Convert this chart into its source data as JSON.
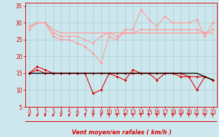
{
  "xlabel": "Vent moyen/en rafales ( km/h )",
  "background_color": "#cce8ee",
  "grid_color": "#aacccc",
  "xlim": [
    -0.5,
    23.5
  ],
  "ylim": [
    5,
    36
  ],
  "yticks": [
    5,
    10,
    15,
    20,
    25,
    30,
    35
  ],
  "xticks": [
    0,
    1,
    2,
    3,
    4,
    5,
    6,
    7,
    8,
    9,
    10,
    11,
    12,
    13,
    14,
    15,
    16,
    17,
    18,
    19,
    20,
    21,
    22,
    23
  ],
  "series": [
    {
      "y": [
        28,
        30,
        30,
        26,
        25,
        25,
        24,
        23,
        21,
        18,
        26,
        25,
        28,
        28,
        34,
        31,
        29,
        32,
        30,
        30,
        30,
        31,
        26,
        30
      ],
      "color": "#ff9999",
      "lw": 0.8,
      "marker": "D",
      "ms": 1.8
    },
    {
      "y": [
        29,
        30,
        30,
        27,
        26,
        26,
        26,
        25,
        24,
        26,
        27,
        26,
        27,
        27,
        28,
        28,
        28,
        28,
        28,
        28,
        28,
        28,
        27,
        28
      ],
      "color": "#ff9999",
      "lw": 0.8,
      "marker": "D",
      "ms": 1.8
    },
    {
      "y": [
        29,
        30,
        30,
        28,
        27,
        27,
        27,
        27,
        27,
        27,
        27,
        27,
        27,
        27,
        27,
        27,
        27,
        27,
        27,
        27,
        27,
        27,
        27,
        27
      ],
      "color": "#ff9999",
      "lw": 1.0,
      "marker": null,
      "ms": 0
    },
    {
      "y": [
        15,
        17,
        16,
        15,
        15,
        15,
        15,
        15,
        9,
        10,
        15,
        14,
        13,
        16,
        15,
        15,
        13,
        15,
        15,
        14,
        14,
        10,
        14,
        13
      ],
      "color": "#dd0000",
      "lw": 0.8,
      "marker": "D",
      "ms": 1.8
    },
    {
      "y": [
        15,
        16,
        15,
        15,
        15,
        15,
        15,
        15,
        15,
        15,
        15,
        15,
        15,
        15,
        15,
        15,
        15,
        15,
        15,
        15,
        14,
        14,
        14,
        13
      ],
      "color": "#dd0000",
      "lw": 0.8,
      "marker": "D",
      "ms": 1.8
    },
    {
      "y": [
        15,
        15,
        15,
        15,
        15,
        15,
        15,
        15,
        15,
        15,
        15,
        15,
        15,
        15,
        15,
        15,
        15,
        15,
        15,
        15,
        15,
        15,
        14,
        13
      ],
      "color": "#000000",
      "lw": 1.0,
      "marker": null,
      "ms": 0
    }
  ],
  "arrows_angles": [
    45,
    45,
    45,
    45,
    45,
    45,
    45,
    90,
    90,
    90,
    90,
    90,
    90,
    90,
    90,
    90,
    90,
    90,
    90,
    90,
    90,
    90,
    90,
    90
  ],
  "arrow_color": "#dd0000"
}
